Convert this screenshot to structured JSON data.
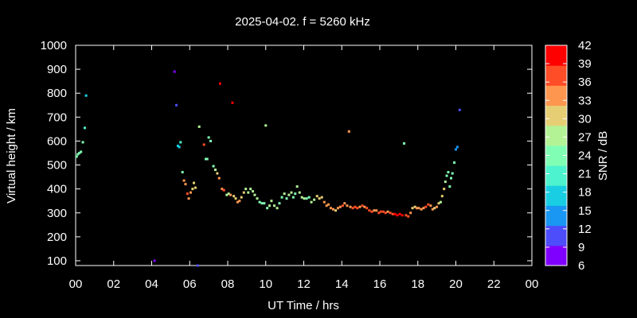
{
  "chart_data": {
    "type": "scatter",
    "title": "2025-04-02. f = 5260 kHz",
    "xlabel": "UT Time / hrs",
    "ylabel": "Virtual height / km",
    "xlim": [
      0,
      24
    ],
    "ylim": [
      80,
      1000
    ],
    "x_ticks": [
      "00",
      "02",
      "04",
      "06",
      "08",
      "10",
      "12",
      "14",
      "16",
      "18",
      "20",
      "22",
      "00"
    ],
    "y_ticks": [
      100,
      200,
      300,
      400,
      500,
      600,
      700,
      800,
      900,
      1000
    ],
    "colorbar": {
      "label": "SNR / dB",
      "range": [
        6,
        42
      ],
      "ticks": [
        6,
        9,
        12,
        15,
        18,
        21,
        24,
        27,
        30,
        33,
        36,
        39,
        42
      ],
      "colors": [
        "#8000ff",
        "#4d4dfc",
        "#1a96f3",
        "#19cee3",
        "#4df3ce",
        "#80ffb4",
        "#b3f396",
        "#e6ce74",
        "#ff964f",
        "#ff4d27",
        "#ff0000"
      ]
    },
    "grid": false,
    "points": [
      [
        0.05,
        535,
        24
      ],
      [
        0.12,
        545,
        24
      ],
      [
        0.2,
        550,
        24
      ],
      [
        0.28,
        555,
        24
      ],
      [
        0.38,
        595,
        24
      ],
      [
        0.48,
        655,
        21
      ],
      [
        0.55,
        790,
        18
      ],
      [
        4.15,
        100,
        9
      ],
      [
        5.2,
        890,
        9
      ],
      [
        5.3,
        750,
        12
      ],
      [
        5.38,
        580,
        18
      ],
      [
        5.45,
        575,
        18
      ],
      [
        5.52,
        595,
        21
      ],
      [
        5.62,
        470,
        24
      ],
      [
        5.7,
        435,
        33
      ],
      [
        5.78,
        420,
        33
      ],
      [
        5.88,
        380,
        36
      ],
      [
        5.95,
        360,
        33
      ],
      [
        6.05,
        385,
        33
      ],
      [
        6.15,
        400,
        30
      ],
      [
        6.22,
        425,
        30
      ],
      [
        6.3,
        405,
        30
      ],
      [
        6.42,
        80,
        12
      ],
      [
        6.5,
        660,
        27
      ],
      [
        6.75,
        585,
        36
      ],
      [
        6.85,
        525,
        24
      ],
      [
        6.92,
        525,
        24
      ],
      [
        7.0,
        615,
        24
      ],
      [
        7.1,
        600,
        24
      ],
      [
        7.25,
        495,
        24
      ],
      [
        7.35,
        480,
        27
      ],
      [
        7.45,
        465,
        30
      ],
      [
        7.55,
        445,
        33
      ],
      [
        7.6,
        840,
        39
      ],
      [
        7.7,
        400,
        33
      ],
      [
        7.8,
        395,
        36
      ],
      [
        7.95,
        375,
        27
      ],
      [
        8.05,
        380,
        27
      ],
      [
        8.15,
        375,
        33
      ],
      [
        8.25,
        760,
        39
      ],
      [
        8.32,
        370,
        30
      ],
      [
        8.42,
        360,
        30
      ],
      [
        8.52,
        345,
        33
      ],
      [
        8.62,
        350,
        33
      ],
      [
        8.72,
        365,
        30
      ],
      [
        8.85,
        385,
        30
      ],
      [
        8.95,
        400,
        27
      ],
      [
        9.08,
        385,
        27
      ],
      [
        9.2,
        400,
        27
      ],
      [
        9.32,
        390,
        27
      ],
      [
        9.42,
        375,
        27
      ],
      [
        9.55,
        360,
        27
      ],
      [
        9.68,
        345,
        24
      ],
      [
        9.8,
        340,
        24
      ],
      [
        9.92,
        340,
        24
      ],
      [
        10.0,
        665,
        27
      ],
      [
        10.08,
        320,
        24
      ],
      [
        10.2,
        330,
        27
      ],
      [
        10.3,
        350,
        27
      ],
      [
        10.45,
        330,
        27
      ],
      [
        10.6,
        320,
        27
      ],
      [
        10.72,
        340,
        24
      ],
      [
        10.85,
        365,
        24
      ],
      [
        10.98,
        380,
        27
      ],
      [
        11.1,
        360,
        24
      ],
      [
        11.22,
        375,
        27
      ],
      [
        11.35,
        385,
        27
      ],
      [
        11.45,
        365,
        24
      ],
      [
        11.55,
        380,
        24
      ],
      [
        11.65,
        410,
        27
      ],
      [
        11.78,
        385,
        27
      ],
      [
        11.9,
        365,
        27
      ],
      [
        12.02,
        360,
        27
      ],
      [
        12.15,
        360,
        24
      ],
      [
        12.28,
        365,
        24
      ],
      [
        12.4,
        345,
        27
      ],
      [
        12.55,
        355,
        27
      ],
      [
        12.7,
        370,
        30
      ],
      [
        12.82,
        360,
        30
      ],
      [
        12.95,
        365,
        30
      ],
      [
        13.08,
        345,
        33
      ],
      [
        13.2,
        330,
        33
      ],
      [
        13.3,
        335,
        33
      ],
      [
        13.42,
        320,
        33
      ],
      [
        13.55,
        315,
        33
      ],
      [
        13.68,
        310,
        30
      ],
      [
        13.8,
        320,
        33
      ],
      [
        13.92,
        325,
        33
      ],
      [
        14.05,
        330,
        36
      ],
      [
        14.15,
        340,
        33
      ],
      [
        14.28,
        330,
        33
      ],
      [
        14.38,
        640,
        33
      ],
      [
        14.45,
        325,
        33
      ],
      [
        14.58,
        320,
        36
      ],
      [
        14.7,
        325,
        36
      ],
      [
        14.82,
        320,
        36
      ],
      [
        14.95,
        325,
        33
      ],
      [
        15.08,
        330,
        36
      ],
      [
        15.2,
        325,
        33
      ],
      [
        15.32,
        320,
        36
      ],
      [
        15.45,
        310,
        36
      ],
      [
        15.58,
        305,
        36
      ],
      [
        15.7,
        310,
        33
      ],
      [
        15.82,
        310,
        33
      ],
      [
        15.95,
        300,
        36
      ],
      [
        16.05,
        305,
        36
      ],
      [
        16.18,
        305,
        36
      ],
      [
        16.3,
        300,
        36
      ],
      [
        16.42,
        305,
        33
      ],
      [
        16.55,
        300,
        36
      ],
      [
        16.68,
        295,
        36
      ],
      [
        16.8,
        295,
        39
      ],
      [
        16.92,
        290,
        39
      ],
      [
        17.05,
        295,
        39
      ],
      [
        17.18,
        290,
        39
      ],
      [
        17.28,
        590,
        24
      ],
      [
        17.38,
        290,
        36
      ],
      [
        17.5,
        285,
        36
      ],
      [
        17.62,
        300,
        33
      ],
      [
        17.72,
        320,
        30
      ],
      [
        17.85,
        325,
        30
      ],
      [
        17.95,
        320,
        33
      ],
      [
        18.05,
        320,
        33
      ],
      [
        18.18,
        315,
        33
      ],
      [
        18.3,
        320,
        33
      ],
      [
        18.42,
        325,
        36
      ],
      [
        18.55,
        335,
        36
      ],
      [
        18.68,
        330,
        33
      ],
      [
        18.78,
        315,
        33
      ],
      [
        18.88,
        320,
        30
      ],
      [
        19.0,
        325,
        33
      ],
      [
        19.1,
        340,
        30
      ],
      [
        19.2,
        345,
        27
      ],
      [
        19.28,
        370,
        30
      ],
      [
        19.38,
        400,
        30
      ],
      [
        19.45,
        430,
        27
      ],
      [
        19.52,
        455,
        24
      ],
      [
        19.6,
        470,
        24
      ],
      [
        19.68,
        410,
        24
      ],
      [
        19.75,
        445,
        24
      ],
      [
        19.82,
        465,
        24
      ],
      [
        19.92,
        510,
        24
      ],
      [
        20.0,
        565,
        15
      ],
      [
        20.08,
        575,
        15
      ],
      [
        20.2,
        730,
        12
      ]
    ]
  }
}
